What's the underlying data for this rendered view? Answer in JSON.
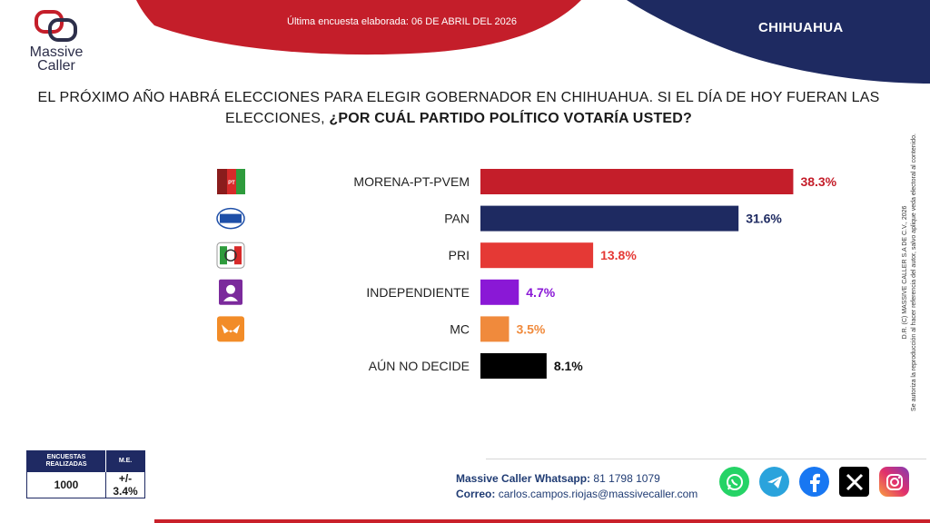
{
  "header": {
    "survey_date": "Última encuesta elaborada: 06 DE ABRIL DEL 2026",
    "region": "CHIHUAHUA",
    "colors": {
      "red": "#c41e2a",
      "navy": "#1e2a61"
    }
  },
  "logo": {
    "line1": "Massive",
    "line2": "Caller"
  },
  "question": {
    "plain": "EL PRÓXIMO AÑO HABRÁ ELECCIONES PARA ELEGIR GOBERNADOR EN CHIHUAHUA. SI EL DÍA DE HOY FUERAN LAS ELECCIONES, ",
    "bold": "¿POR CUÁL PARTIDO POLÍTICO VOTARÍA USTED?"
  },
  "chart_data": {
    "type": "bar",
    "orientation": "horizontal",
    "categories": [
      "MORENA-PT-PVEM",
      "PAN",
      "PRI",
      "INDEPENDIENTE",
      "MC",
      "AÚN NO DECIDE"
    ],
    "values": [
      38.3,
      31.6,
      13.8,
      4.7,
      3.5,
      8.1
    ],
    "value_labels": [
      "38.3%",
      "31.6%",
      "13.8%",
      "4.7%",
      "3.5%",
      "8.1%"
    ],
    "colors": [
      "#c41e2a",
      "#1e2a61",
      "#e53935",
      "#8a18d6",
      "#f08a3c",
      "#000000"
    ],
    "icons": [
      "morena-pt-pvem-logo-icon",
      "pan-logo-icon",
      "pri-logo-icon",
      "independiente-logo-icon",
      "mc-logo-icon",
      ""
    ],
    "xlim": [
      0,
      45
    ],
    "grid": false,
    "legend": "none"
  },
  "copyright": {
    "line1": "D.R. (C) MASSIVE CALLER S.A DE C.V., 2026",
    "line2": "Se autoriza la reproducción al hacer referencia del autor, salvo aplique veda electoral al contenido."
  },
  "sample": {
    "header_surveys": "ENCUESTAS REALIZADAS",
    "header_me": "M.E.",
    "surveys": "1000",
    "me": "+/- 3.4%"
  },
  "footer": {
    "whatsapp_label": "Massive Caller Whatsapp:",
    "whatsapp_number": "81 1798 1079",
    "email_label": "Correo:",
    "email": "carlos.campos.riojas@massivecaller.com",
    "socials": [
      "whatsapp-icon",
      "telegram-icon",
      "facebook-icon",
      "x-icon",
      "instagram-icon"
    ]
  }
}
